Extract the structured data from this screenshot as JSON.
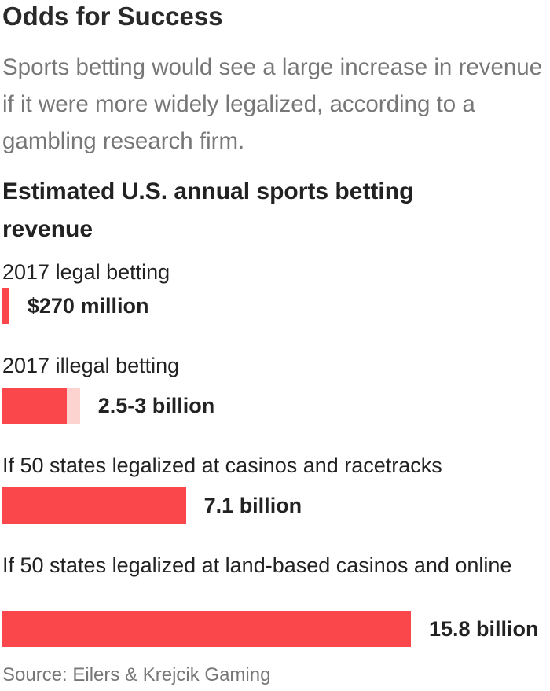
{
  "header": {
    "title": "Odds for Success",
    "subtitle": "Sports betting would see a large increase in revenue if it were more widely legalized, according to a gambling research firm."
  },
  "source": "Source: Eilers & Krejcik Gaming",
  "colors": {
    "bar": "#f9474b",
    "range": "#fdd3cf"
  },
  "chart_data": {
    "type": "bar",
    "orientation": "horizontal",
    "title": "Estimated U.S. annual sports betting revenue",
    "unit": "billion USD",
    "categories": [
      "2017 legal betting",
      "2017 illegal betting",
      "If 50 states legalized at casinos and racetracks",
      "If 50 states legalized at land-based casinos and online"
    ],
    "values": [
      0.27,
      2.5,
      7.1,
      15.8
    ],
    "range_high": [
      null,
      3.0,
      null,
      null
    ],
    "value_labels": [
      "$270 million",
      "2.5-3 billion",
      "7.1 billion",
      "15.8 billion"
    ],
    "xlim": [
      0,
      15.8
    ],
    "grid": false,
    "legend": "none"
  }
}
